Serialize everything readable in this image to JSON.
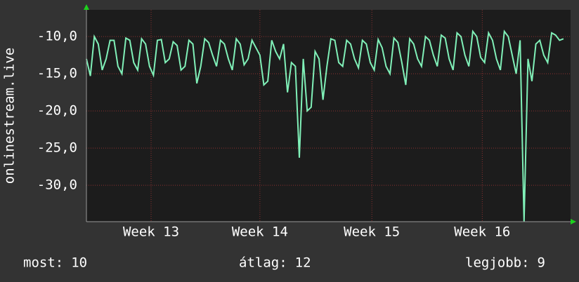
{
  "chart_data": {
    "type": "line",
    "y_label": "onlinestream.live",
    "x": [
      0,
      0.25,
      0.5,
      0.75,
      1,
      1.25,
      1.5,
      1.75,
      2,
      2.25,
      2.5,
      2.75,
      3,
      3.25,
      3.5,
      3.75,
      4,
      4.25,
      4.5,
      4.75,
      5,
      5.25,
      5.5,
      5.75,
      6,
      6.25,
      6.5,
      6.75,
      7,
      7.25,
      7.5,
      7.75,
      8,
      8.25,
      8.5,
      8.75,
      9,
      9.25,
      9.5,
      9.75,
      10,
      10.25,
      10.5,
      10.75,
      11,
      11.25,
      11.5,
      11.75,
      12,
      12.25,
      12.5,
      12.75,
      13,
      13.25,
      13.5,
      13.75,
      14,
      14.25,
      14.5,
      14.75,
      15,
      15.25,
      15.5,
      15.75,
      16,
      16.25,
      16.5,
      16.75,
      17,
      17.25,
      17.5,
      17.75,
      18,
      18.25,
      18.5,
      18.75,
      19,
      19.25,
      19.5,
      19.75,
      20,
      20.25,
      20.5,
      20.75,
      21,
      21.25,
      21.5,
      21.75,
      22,
      22.25,
      22.5,
      22.75,
      23,
      23.25,
      23.5,
      23.75,
      24,
      24.25,
      24.5,
      24.75,
      25,
      25.25,
      25.5,
      25.75,
      26,
      26.25,
      26.5,
      26.75,
      27,
      27.25,
      27.5,
      27.75,
      28,
      28.25,
      28.5,
      28.75,
      29,
      29.25,
      29.5,
      29.75,
      30,
      30.25
    ],
    "series": [
      {
        "color": "#80f0b8",
        "values": [
          -13,
          -15.3,
          -10,
          -11,
          -14.5,
          -13,
          -10.5,
          -10.5,
          -14,
          -15,
          -10.2,
          -10.5,
          -13.5,
          -14.5,
          -10.3,
          -11,
          -14,
          -15.2,
          -10.5,
          -10.4,
          -13.5,
          -13,
          -10.7,
          -11.2,
          -14.5,
          -14,
          -10.5,
          -11,
          -16.3,
          -14,
          -10.3,
          -10.8,
          -12.5,
          -14,
          -10.5,
          -11,
          -13,
          -14.5,
          -10.3,
          -11,
          -13.8,
          -13,
          -10.5,
          -11.5,
          -12.5,
          -16.5,
          -16,
          -10.5,
          -12,
          -13,
          -11,
          -17.5,
          -13.5,
          -14,
          -26.3,
          -13,
          -20,
          -19.5,
          -12,
          -13,
          -18.5,
          -14,
          -10.3,
          -10.5,
          -13.5,
          -14,
          -10.5,
          -11,
          -13,
          -14.2,
          -10.5,
          -11,
          -13.5,
          -14.5,
          -10.4,
          -11.5,
          -14,
          -15,
          -10.2,
          -10.8,
          -13.5,
          -16.5,
          -10.3,
          -11,
          -13,
          -14,
          -10,
          -10.5,
          -12.5,
          -14,
          -9.8,
          -10.2,
          -13,
          -14.5,
          -9.5,
          -10,
          -12.5,
          -14,
          -9.3,
          -10,
          -12.8,
          -13.5,
          -9.5,
          -10.5,
          -13,
          -14.5,
          -9.3,
          -10,
          -12.5,
          -15,
          -10.5,
          -34.9,
          -13,
          -16,
          -11,
          -10.5,
          -12.5,
          -13.5,
          -9.5,
          -9.8,
          -10.5,
          -10.3
        ]
      }
    ],
    "xlim": [
      0,
      30.7
    ],
    "xticks": [
      {
        "value": 4.1,
        "label": "Week 13"
      },
      {
        "value": 11,
        "label": "Week 14"
      },
      {
        "value": 18.1,
        "label": "Week 15"
      },
      {
        "value": 25.1,
        "label": "Week 16"
      }
    ],
    "ylim": [
      -34.9,
      -6.4
    ],
    "yticks": [
      {
        "value": -30,
        "label": "-30,0"
      },
      {
        "value": -25,
        "label": "-25,0"
      },
      {
        "value": -20,
        "label": "-20,0"
      },
      {
        "value": -15,
        "label": "-15,0"
      },
      {
        "value": -10,
        "label": "-10,0"
      }
    ],
    "grid": true,
    "stats": [
      {
        "label": "most:",
        "value": 10
      },
      {
        "label": "átlag:",
        "value": 12
      },
      {
        "label": "legjobb:",
        "value": 9
      }
    ]
  }
}
